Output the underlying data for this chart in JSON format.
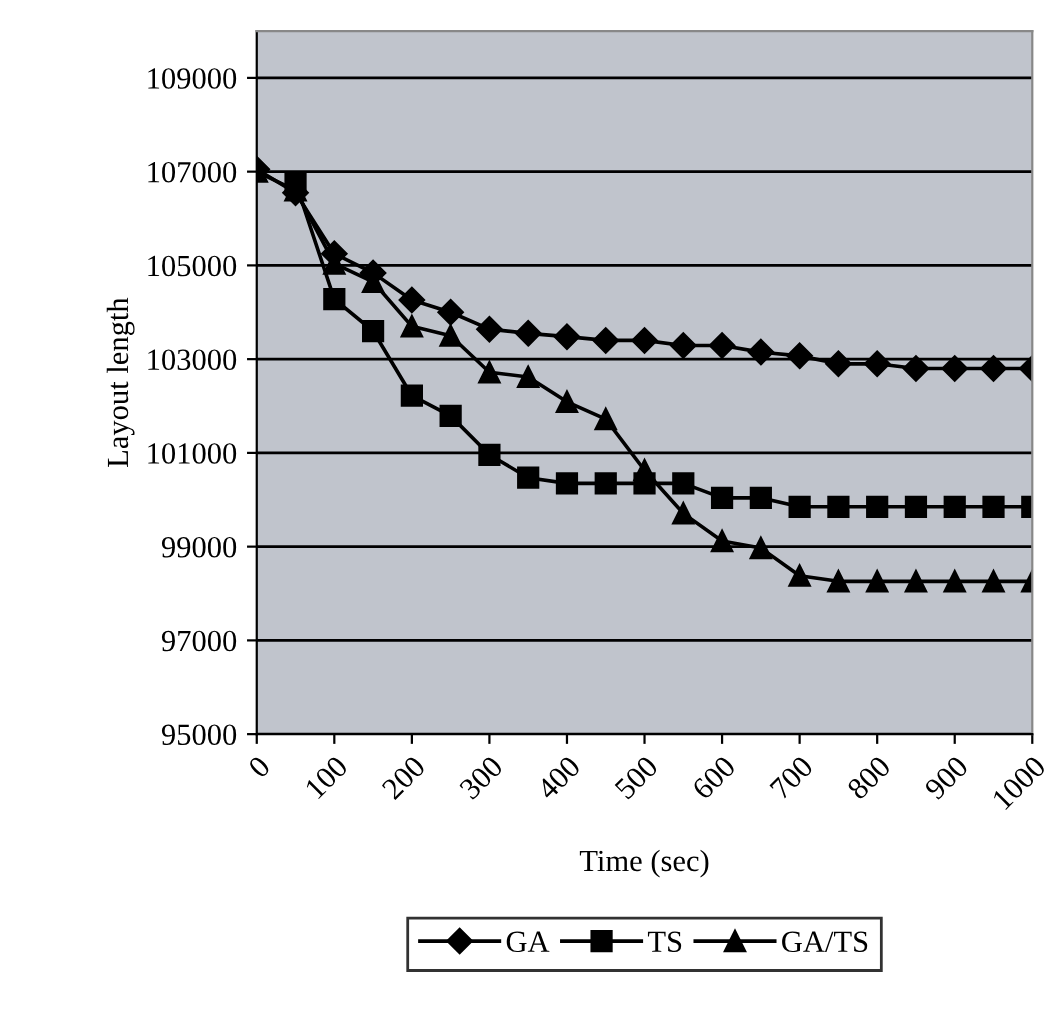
{
  "chart_data": {
    "type": "line",
    "xlabel": "Time (sec)",
    "ylabel": "Layout length",
    "x": [
      0,
      50,
      100,
      150,
      200,
      250,
      300,
      350,
      400,
      450,
      500,
      550,
      600,
      650,
      700,
      750,
      800,
      850,
      900,
      950,
      1000
    ],
    "xlim": [
      0,
      1000
    ],
    "xticks": [
      0,
      100,
      200,
      300,
      400,
      500,
      600,
      700,
      800,
      900,
      1000
    ],
    "ylim": [
      95000,
      110000
    ],
    "yticks": [
      95000,
      97000,
      99000,
      101000,
      103000,
      105000,
      107000,
      109000
    ],
    "grid": "y",
    "legend": "bottom",
    "line_style": "solid",
    "series": [
      {
        "name": "GA",
        "color": "#000000",
        "marker": "diamond",
        "values": [
          107050,
          106550,
          105250,
          104840,
          104260,
          104000,
          103640,
          103550,
          103480,
          103400,
          103400,
          103290,
          103290,
          103150,
          103070,
          102900,
          102900,
          102800,
          102800,
          102800,
          102800
        ]
      },
      {
        "name": "TS",
        "color": "#000000",
        "marker": "square",
        "values": [
          null,
          106770,
          104280,
          103600,
          102220,
          101790,
          100960,
          100470,
          100350,
          100350,
          100350,
          100350,
          100040,
          100040,
          99850,
          99850,
          99850,
          99850,
          99850,
          99850,
          99850
        ]
      },
      {
        "name": "GA/TS",
        "color": "#000000",
        "marker": "triangle",
        "values": [
          107000,
          106600,
          105040,
          104650,
          103700,
          103500,
          102720,
          102620,
          102090,
          101720,
          100630,
          99710,
          99120,
          98970,
          98380,
          98260,
          98260,
          98260,
          98260,
          98260,
          98260
        ]
      }
    ]
  }
}
